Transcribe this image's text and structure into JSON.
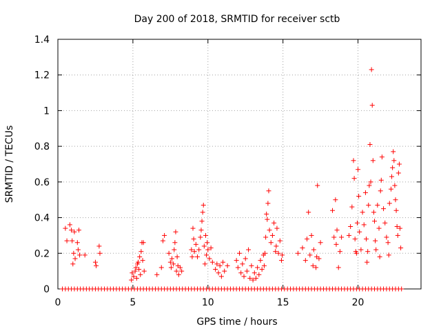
{
  "chart_data": {
    "type": "scatter",
    "title": "Day 200 of 2018, SRMTID for receiver sctb",
    "xlabel": "GPS time / hours",
    "ylabel": "SRMTID / TECUs",
    "xlim": [
      0,
      24.2
    ],
    "ylim": [
      0,
      1.4
    ],
    "xticks": [
      0,
      5,
      10,
      15,
      20
    ],
    "xtick_labels": [
      "0",
      "5",
      "10",
      "15",
      "20"
    ],
    "yticks": [
      0,
      0.2,
      0.4,
      0.6,
      0.8,
      1.0,
      1.2,
      1.4
    ],
    "ytick_labels": [
      "0",
      "0.2",
      "0.4",
      "0.6",
      "0.8",
      "1",
      "1.2",
      "1.4"
    ],
    "grid": true,
    "marker": "+",
    "color": "#ff0000",
    "series": [
      {
        "name": "SRMTID",
        "points": [
          [
            0.5,
            0.34
          ],
          [
            0.6,
            0.27
          ],
          [
            0.8,
            0.36
          ],
          [
            0.9,
            0.33
          ],
          [
            0.95,
            0.27
          ],
          [
            1.0,
            0.14
          ],
          [
            1.05,
            0.2
          ],
          [
            1.1,
            0.32
          ],
          [
            1.15,
            0.17
          ],
          [
            1.3,
            0.26
          ],
          [
            1.35,
            0.22
          ],
          [
            1.4,
            0.33
          ],
          [
            1.45,
            0.19
          ],
          [
            1.8,
            0.19
          ],
          [
            2.5,
            0.15
          ],
          [
            2.55,
            0.13
          ],
          [
            2.75,
            0.24
          ],
          [
            2.8,
            0.2
          ],
          [
            4.9,
            0.05
          ],
          [
            4.95,
            0.09
          ],
          [
            5.05,
            0.07
          ],
          [
            5.15,
            0.1
          ],
          [
            5.2,
            0.12
          ],
          [
            5.25,
            0.06
          ],
          [
            5.3,
            0.14
          ],
          [
            5.35,
            0.15
          ],
          [
            5.4,
            0.11
          ],
          [
            5.45,
            0.18
          ],
          [
            5.5,
            0.08
          ],
          [
            5.55,
            0.21
          ],
          [
            5.6,
            0.26
          ],
          [
            5.65,
            0.16
          ],
          [
            5.7,
            0.26
          ],
          [
            5.75,
            0.1
          ],
          [
            6.6,
            0.08
          ],
          [
            6.9,
            0.12
          ],
          [
            7.0,
            0.27
          ],
          [
            7.1,
            0.3
          ],
          [
            7.4,
            0.2
          ],
          [
            7.5,
            0.15
          ],
          [
            7.55,
            0.12
          ],
          [
            7.6,
            0.17
          ],
          [
            7.7,
            0.14
          ],
          [
            7.75,
            0.22
          ],
          [
            7.8,
            0.26
          ],
          [
            7.85,
            0.32
          ],
          [
            7.9,
            0.1
          ],
          [
            7.95,
            0.18
          ],
          [
            8.0,
            0.13
          ],
          [
            8.05,
            0.08
          ],
          [
            8.15,
            0.12
          ],
          [
            8.25,
            0.1
          ],
          [
            8.9,
            0.22
          ],
          [
            8.95,
            0.18
          ],
          [
            9.0,
            0.34
          ],
          [
            9.05,
            0.28
          ],
          [
            9.1,
            0.21
          ],
          [
            9.2,
            0.25
          ],
          [
            9.3,
            0.18
          ],
          [
            9.4,
            0.22
          ],
          [
            9.5,
            0.29
          ],
          [
            9.55,
            0.33
          ],
          [
            9.6,
            0.38
          ],
          [
            9.65,
            0.43
          ],
          [
            9.7,
            0.47
          ],
          [
            9.75,
            0.24
          ],
          [
            9.8,
            0.14
          ],
          [
            9.85,
            0.3
          ],
          [
            9.9,
            0.19
          ],
          [
            9.95,
            0.26
          ],
          [
            10.0,
            0.22
          ],
          [
            10.1,
            0.17
          ],
          [
            10.2,
            0.23
          ],
          [
            10.3,
            0.15
          ],
          [
            10.5,
            0.11
          ],
          [
            10.6,
            0.14
          ],
          [
            10.7,
            0.09
          ],
          [
            10.8,
            0.13
          ],
          [
            10.9,
            0.07
          ],
          [
            11.0,
            0.15
          ],
          [
            11.1,
            0.1
          ],
          [
            11.3,
            0.13
          ],
          [
            11.9,
            0.16
          ],
          [
            12.0,
            0.12
          ],
          [
            12.1,
            0.2
          ],
          [
            12.2,
            0.09
          ],
          [
            12.3,
            0.14
          ],
          [
            12.4,
            0.07
          ],
          [
            12.5,
            0.17
          ],
          [
            12.6,
            0.1
          ],
          [
            12.7,
            0.22
          ],
          [
            12.8,
            0.06
          ],
          [
            12.9,
            0.13
          ],
          [
            13.0,
            0.05
          ],
          [
            13.1,
            0.09
          ],
          [
            13.2,
            0.06
          ],
          [
            13.3,
            0.12
          ],
          [
            13.4,
            0.08
          ],
          [
            13.5,
            0.16
          ],
          [
            13.6,
            0.11
          ],
          [
            13.7,
            0.19
          ],
          [
            13.75,
            0.13
          ],
          [
            13.8,
            0.2
          ],
          [
            13.85,
            0.29
          ],
          [
            13.9,
            0.42
          ],
          [
            13.95,
            0.39
          ],
          [
            14.0,
            0.48
          ],
          [
            14.05,
            0.55
          ],
          [
            14.1,
            0.33
          ],
          [
            14.2,
            0.26
          ],
          [
            14.3,
            0.3
          ],
          [
            14.4,
            0.37
          ],
          [
            14.5,
            0.21
          ],
          [
            14.55,
            0.24
          ],
          [
            14.6,
            0.34
          ],
          [
            14.7,
            0.2
          ],
          [
            14.8,
            0.27
          ],
          [
            14.9,
            0.16
          ],
          [
            14.95,
            0.19
          ],
          [
            16.0,
            0.2
          ],
          [
            16.3,
            0.23
          ],
          [
            16.5,
            0.16
          ],
          [
            16.6,
            0.28
          ],
          [
            16.7,
            0.43
          ],
          [
            16.8,
            0.19
          ],
          [
            16.9,
            0.3
          ],
          [
            17.0,
            0.13
          ],
          [
            17.05,
            0.22
          ],
          [
            17.2,
            0.12
          ],
          [
            17.25,
            0.18
          ],
          [
            17.3,
            0.58
          ],
          [
            17.4,
            0.17
          ],
          [
            17.5,
            0.26
          ],
          [
            18.3,
            0.44
          ],
          [
            18.4,
            0.29
          ],
          [
            18.5,
            0.5
          ],
          [
            18.55,
            0.25
          ],
          [
            18.6,
            0.33
          ],
          [
            18.7,
            0.12
          ],
          [
            18.8,
            0.21
          ],
          [
            18.9,
            0.29
          ],
          [
            19.4,
            0.3
          ],
          [
            19.5,
            0.35
          ],
          [
            19.6,
            0.46
          ],
          [
            19.7,
            0.72
          ],
          [
            19.75,
            0.62
          ],
          [
            19.8,
            0.28
          ],
          [
            19.85,
            0.21
          ],
          [
            19.9,
            0.2
          ],
          [
            19.95,
            0.37
          ],
          [
            20.0,
            0.67
          ],
          [
            20.05,
            0.52
          ],
          [
            20.1,
            0.32
          ],
          [
            20.2,
            0.22
          ],
          [
            20.3,
            0.43
          ],
          [
            20.4,
            0.36
          ],
          [
            20.5,
            0.54
          ],
          [
            20.55,
            0.28
          ],
          [
            20.6,
            0.15
          ],
          [
            20.65,
            0.21
          ],
          [
            20.7,
            0.47
          ],
          [
            20.75,
            0.58
          ],
          [
            20.8,
            0.81
          ],
          [
            20.85,
            0.6
          ],
          [
            20.9,
            1.23
          ],
          [
            20.95,
            1.03
          ],
          [
            21.0,
            0.72
          ],
          [
            21.05,
            0.43
          ],
          [
            21.1,
            0.38
          ],
          [
            21.15,
            0.27
          ],
          [
            21.2,
            0.22
          ],
          [
            21.3,
            0.47
          ],
          [
            21.4,
            0.34
          ],
          [
            21.45,
            0.18
          ],
          [
            21.5,
            0.55
          ],
          [
            21.55,
            0.61
          ],
          [
            21.6,
            0.74
          ],
          [
            21.7,
            0.45
          ],
          [
            21.8,
            0.37
          ],
          [
            21.9,
            0.29
          ],
          [
            22.0,
            0.26
          ],
          [
            22.05,
            0.19
          ],
          [
            22.1,
            0.48
          ],
          [
            22.2,
            0.56
          ],
          [
            22.25,
            0.63
          ],
          [
            22.3,
            0.68
          ],
          [
            22.35,
            0.77
          ],
          [
            22.4,
            0.72
          ],
          [
            22.45,
            0.58
          ],
          [
            22.5,
            0.5
          ],
          [
            22.55,
            0.44
          ],
          [
            22.6,
            0.35
          ],
          [
            22.65,
            0.3
          ],
          [
            22.7,
            0.65
          ],
          [
            22.75,
            0.7
          ],
          [
            22.8,
            0.34
          ],
          [
            22.85,
            0.23
          ],
          [
            0.3,
            0
          ],
          [
            0.5,
            0
          ],
          [
            0.7,
            0
          ],
          [
            0.9,
            0
          ],
          [
            1.1,
            0
          ],
          [
            1.3,
            0
          ],
          [
            1.5,
            0
          ],
          [
            1.7,
            0
          ],
          [
            1.9,
            0
          ],
          [
            2.1,
            0
          ],
          [
            2.3,
            0
          ],
          [
            2.5,
            0
          ],
          [
            2.7,
            0
          ],
          [
            2.9,
            0
          ],
          [
            3.1,
            0
          ],
          [
            3.3,
            0
          ],
          [
            3.5,
            0
          ],
          [
            3.7,
            0
          ],
          [
            3.9,
            0
          ],
          [
            4.1,
            0
          ],
          [
            4.3,
            0
          ],
          [
            4.5,
            0
          ],
          [
            4.7,
            0
          ],
          [
            4.9,
            0
          ],
          [
            5.1,
            0
          ],
          [
            5.3,
            0
          ],
          [
            5.5,
            0
          ],
          [
            5.7,
            0
          ],
          [
            5.9,
            0
          ],
          [
            6.1,
            0
          ],
          [
            6.3,
            0
          ],
          [
            6.5,
            0
          ],
          [
            6.7,
            0
          ],
          [
            6.9,
            0
          ],
          [
            7.1,
            0
          ],
          [
            7.3,
            0
          ],
          [
            7.5,
            0
          ],
          [
            7.7,
            0
          ],
          [
            7.9,
            0
          ],
          [
            8.1,
            0
          ],
          [
            8.3,
            0
          ],
          [
            8.5,
            0
          ],
          [
            8.7,
            0
          ],
          [
            8.9,
            0
          ],
          [
            9.1,
            0
          ],
          [
            9.3,
            0
          ],
          [
            9.5,
            0
          ],
          [
            9.7,
            0
          ],
          [
            9.9,
            0
          ],
          [
            10.1,
            0
          ],
          [
            10.3,
            0
          ],
          [
            10.5,
            0
          ],
          [
            10.7,
            0
          ],
          [
            10.9,
            0
          ],
          [
            11.1,
            0
          ],
          [
            11.3,
            0
          ],
          [
            11.5,
            0
          ],
          [
            11.7,
            0
          ],
          [
            11.9,
            0
          ],
          [
            12.1,
            0
          ],
          [
            12.3,
            0
          ],
          [
            12.5,
            0
          ],
          [
            12.7,
            0
          ],
          [
            12.9,
            0
          ],
          [
            13.1,
            0
          ],
          [
            13.3,
            0
          ],
          [
            13.5,
            0
          ],
          [
            13.7,
            0
          ],
          [
            13.9,
            0
          ],
          [
            14.1,
            0
          ],
          [
            14.3,
            0
          ],
          [
            14.5,
            0
          ],
          [
            14.7,
            0
          ],
          [
            14.9,
            0
          ],
          [
            15.1,
            0
          ],
          [
            15.3,
            0
          ],
          [
            15.5,
            0
          ],
          [
            15.7,
            0
          ],
          [
            15.9,
            0
          ],
          [
            16.1,
            0
          ],
          [
            16.3,
            0
          ],
          [
            16.5,
            0
          ],
          [
            16.7,
            0
          ],
          [
            16.9,
            0
          ],
          [
            17.1,
            0
          ],
          [
            17.3,
            0
          ],
          [
            17.5,
            0
          ],
          [
            17.7,
            0
          ],
          [
            17.9,
            0
          ],
          [
            18.1,
            0
          ],
          [
            18.3,
            0
          ],
          [
            18.5,
            0
          ],
          [
            18.7,
            0
          ],
          [
            18.9,
            0
          ],
          [
            19.1,
            0
          ],
          [
            19.3,
            0
          ],
          [
            19.5,
            0
          ],
          [
            19.7,
            0
          ],
          [
            19.9,
            0
          ],
          [
            20.1,
            0
          ],
          [
            20.3,
            0
          ],
          [
            20.5,
            0
          ],
          [
            20.7,
            0
          ],
          [
            20.9,
            0
          ],
          [
            21.1,
            0
          ],
          [
            21.3,
            0
          ],
          [
            21.5,
            0
          ],
          [
            21.7,
            0
          ],
          [
            21.9,
            0
          ],
          [
            22.1,
            0
          ],
          [
            22.3,
            0
          ],
          [
            22.5,
            0
          ],
          [
            22.7,
            0
          ],
          [
            22.9,
            0
          ]
        ]
      }
    ]
  }
}
